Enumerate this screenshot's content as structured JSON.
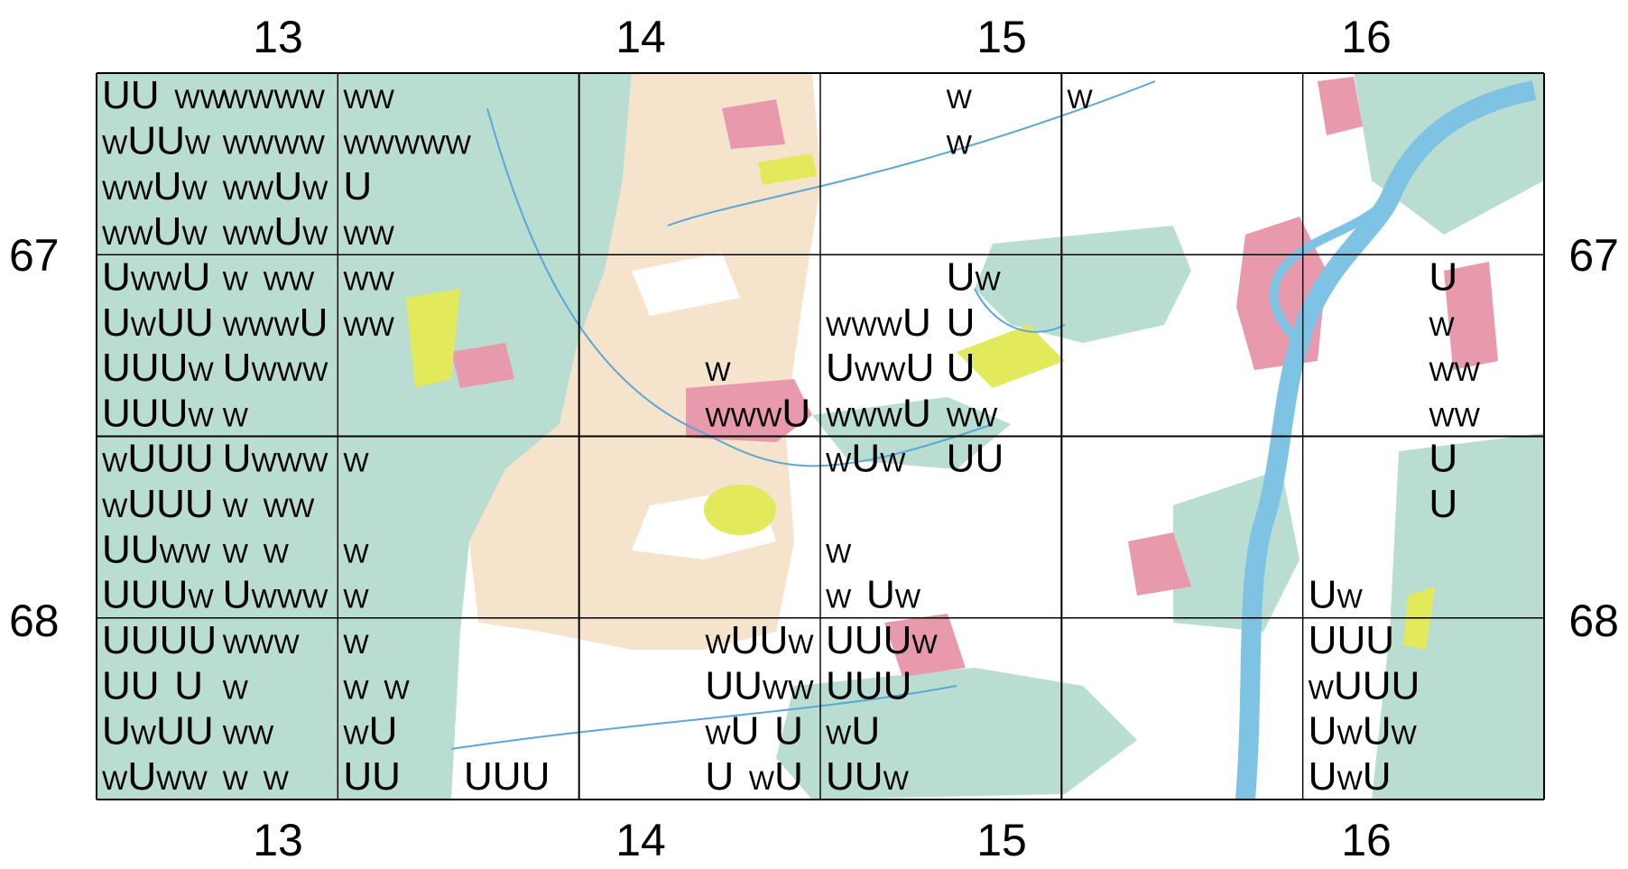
{
  "map": {
    "x_labels": [
      "13",
      "14",
      "15",
      "16"
    ],
    "y_labels": [
      "67",
      "68"
    ],
    "colors": {
      "forest": "#b9ded1",
      "agriculture": "#f5e3cc",
      "settlement": "#e899ac",
      "open_land": "#e2e95a",
      "water": "#7ec3e4",
      "grid": "#000000"
    },
    "rows": [
      [
        "UU WW",
        "WWWW",
        "WW",
        "",
        "",
        "",
        "",
        "W",
        "W",
        "",
        "",
        ""
      ],
      [
        "WUUW",
        "WWWW",
        "WWWWW",
        "",
        "",
        "",
        "",
        "W",
        "",
        "",
        "",
        ""
      ],
      [
        "WWUW",
        "WWUW",
        "U",
        "",
        "",
        "",
        "",
        "",
        "",
        "",
        "",
        ""
      ],
      [
        "WWUW",
        "WWUW",
        "WW",
        "",
        "",
        "",
        "",
        "",
        "",
        "",
        "",
        ""
      ],
      [
        "UWWU",
        "W WW",
        "WW",
        "",
        "",
        "",
        "",
        "UW",
        "",
        "",
        "",
        "U"
      ],
      [
        "UWUU",
        "WWWU",
        "WW",
        "",
        "",
        "",
        "WWWU",
        "U",
        "",
        "",
        "",
        "W"
      ],
      [
        "UUUW",
        "UWWW",
        "",
        "",
        "",
        "W",
        "UWWU",
        "U",
        "",
        "",
        "",
        "WW"
      ],
      [
        "UUUW",
        "W",
        "",
        "",
        "",
        "WWWU",
        "WWWU",
        "WW",
        "",
        "",
        "",
        "WW"
      ],
      [
        "WUUU",
        "UWWW",
        "W",
        "",
        "",
        "",
        "WUW",
        "UU",
        "",
        "",
        "",
        "U"
      ],
      [
        "WUUU",
        "W WW",
        "",
        "",
        "",
        "",
        "",
        "",
        "",
        "",
        "",
        "U"
      ],
      [
        "UUWW",
        "W W",
        "W",
        "",
        "",
        "",
        "W",
        "",
        "",
        "",
        "",
        ""
      ],
      [
        "UUUW",
        "UWWW",
        "W",
        "",
        "",
        "",
        "W UW",
        "",
        "",
        "",
        "UW",
        ""
      ],
      [
        "UUUU",
        "WWW",
        "W",
        "",
        "",
        "WUUW",
        "UUUW",
        "",
        "",
        "",
        "UUU",
        ""
      ],
      [
        "UU U",
        "W",
        "W W",
        "",
        "",
        "UUWW",
        "UUU",
        "",
        "",
        "",
        "WUUU",
        ""
      ],
      [
        "UWUU",
        "WW",
        "WU",
        "",
        "",
        "WU U",
        "WU",
        "",
        "",
        "",
        "UWUW",
        ""
      ],
      [
        "WUWW",
        "W W",
        "UU",
        "UUU",
        "",
        "U WU",
        "UUW",
        "",
        "",
        "",
        "UWU",
        ""
      ]
    ]
  }
}
